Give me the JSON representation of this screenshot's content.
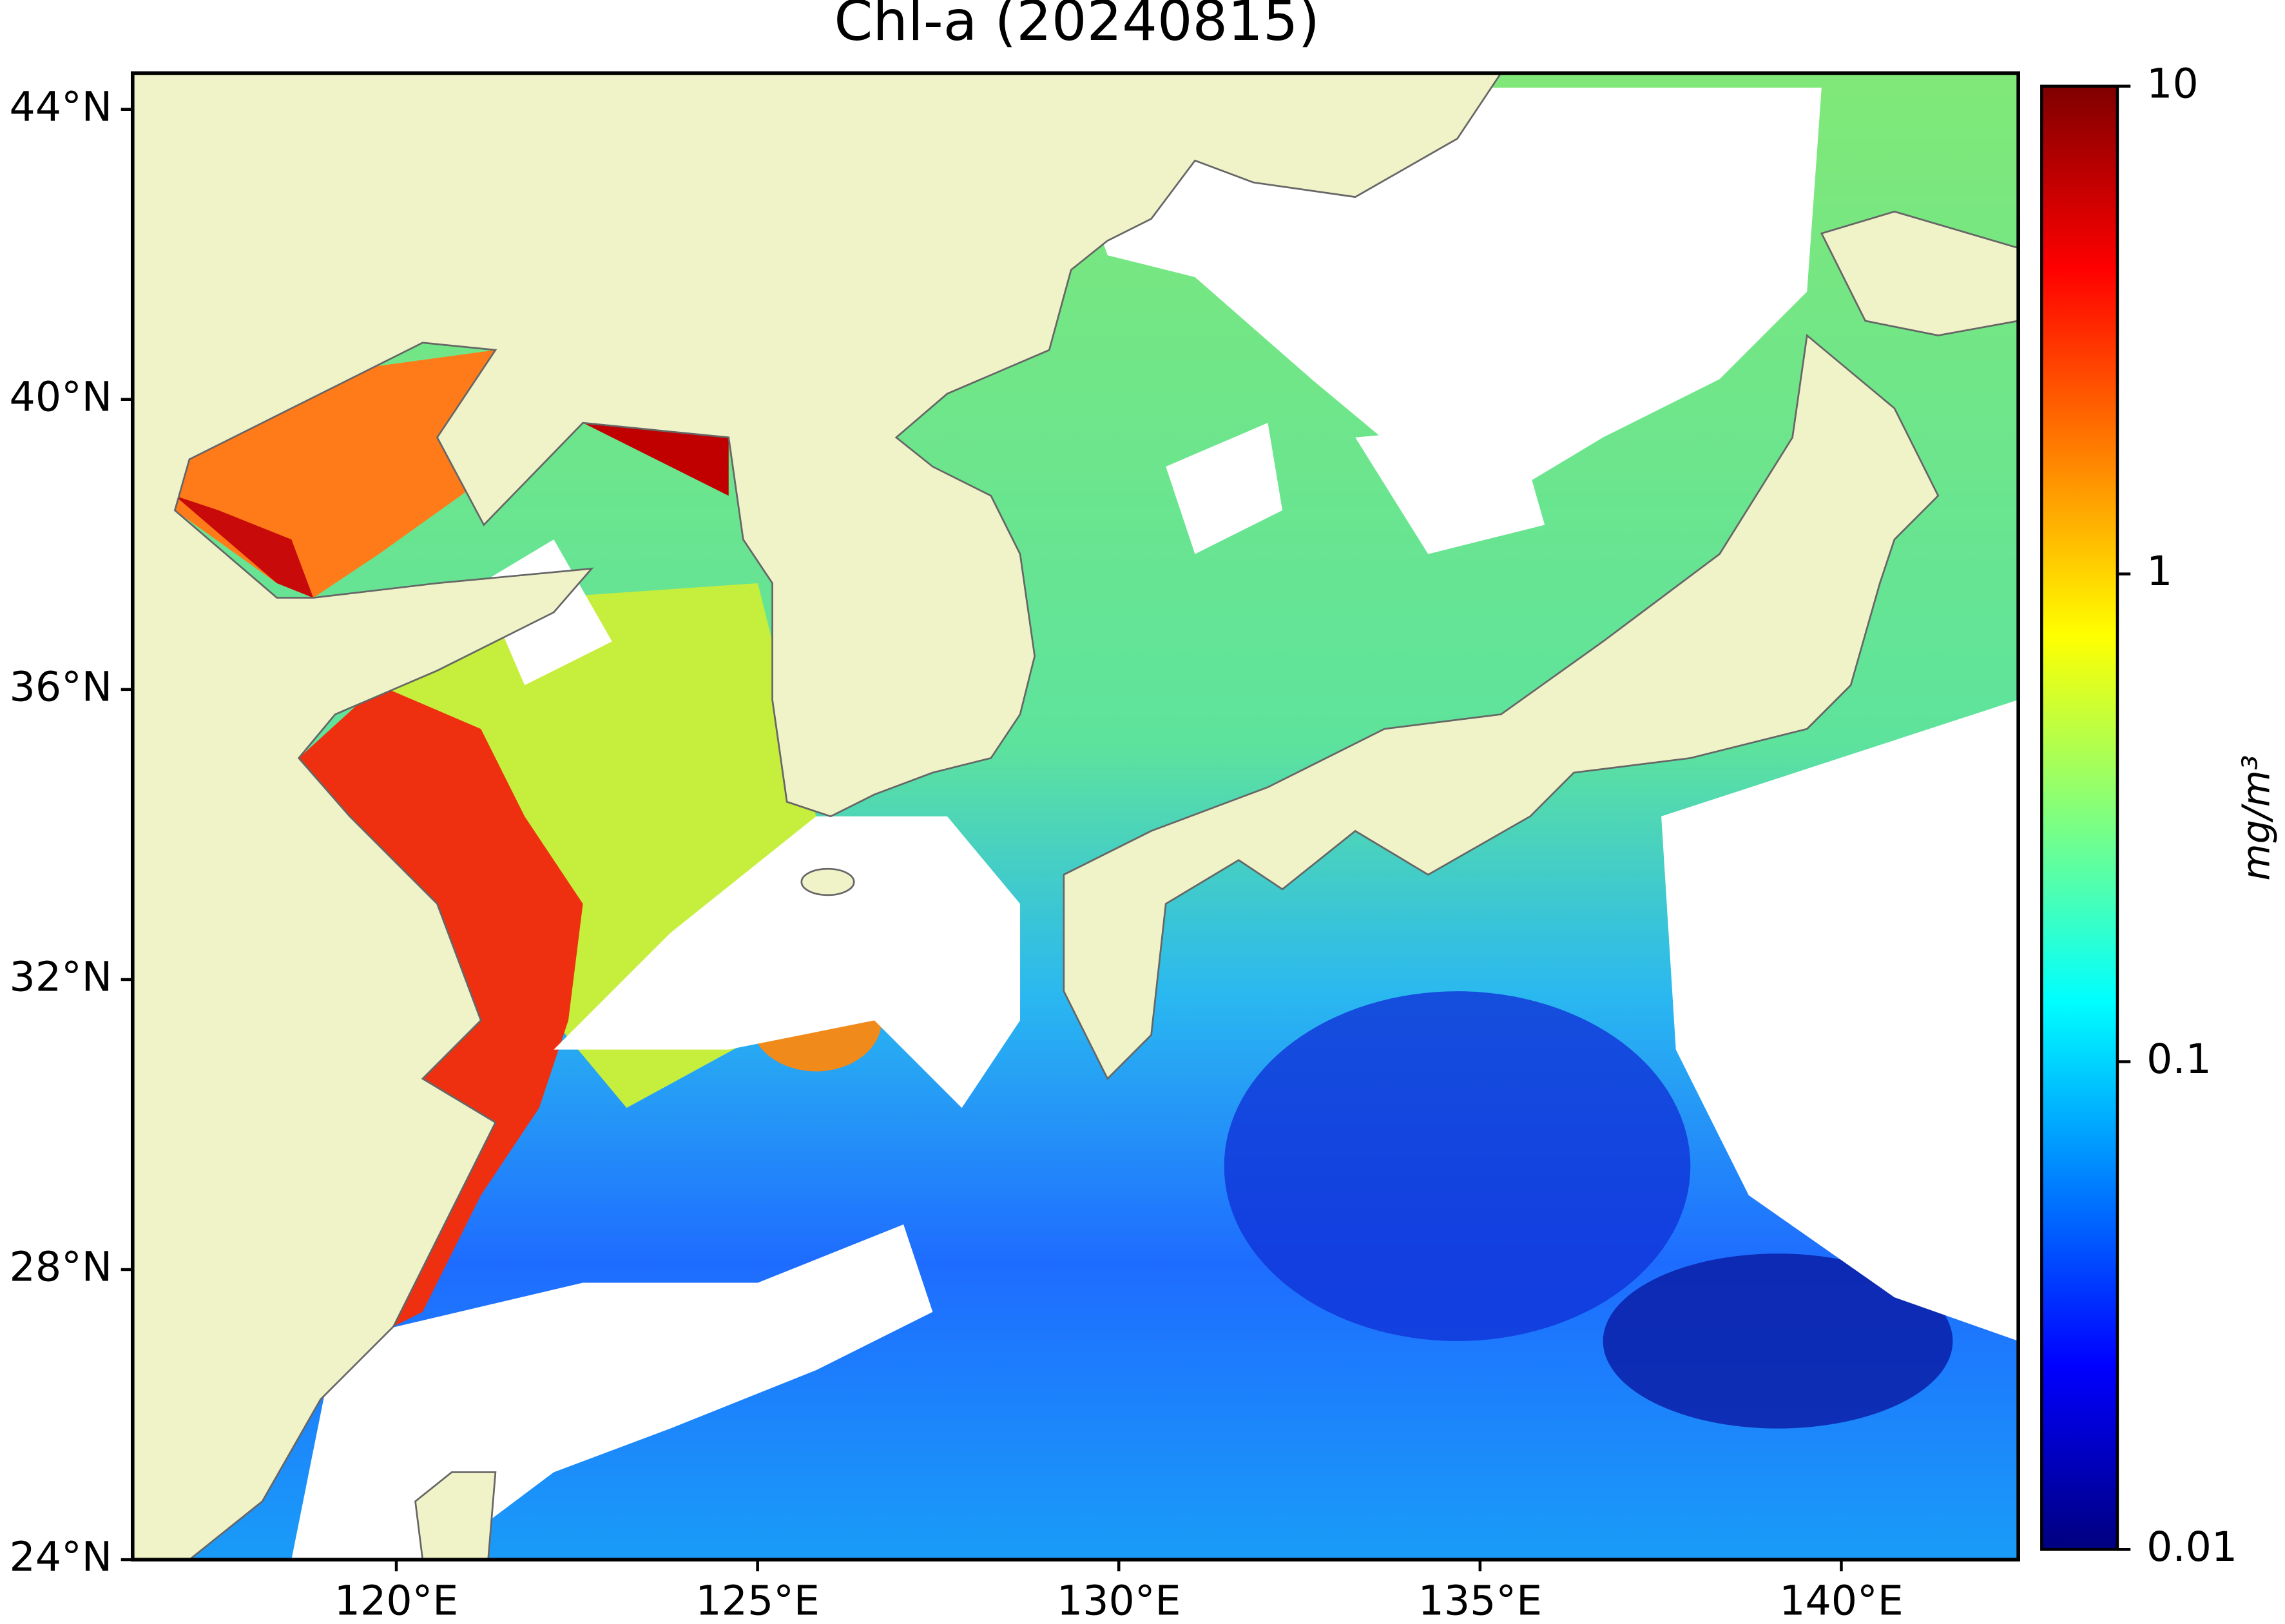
{
  "chart_data": {
    "type": "map",
    "title": "Chl-a (20240815)",
    "xlim": [
      116.35,
      142.45
    ],
    "ylim": [
      24,
      44.5
    ],
    "xticks": [
      {
        "value": 120,
        "label": "120°E"
      },
      {
        "value": 125,
        "label": "125°E"
      },
      {
        "value": 130,
        "label": "130°E"
      },
      {
        "value": 135,
        "label": "135°E"
      },
      {
        "value": 140,
        "label": "140°E"
      }
    ],
    "yticks": [
      {
        "value": 24,
        "label": "24°N"
      },
      {
        "value": 28,
        "label": "28°N"
      },
      {
        "value": 32,
        "label": "32°N"
      },
      {
        "value": 36,
        "label": "36°N"
      },
      {
        "value": 40,
        "label": "40°N"
      },
      {
        "value": 44,
        "label": "44°N"
      }
    ],
    "colorbar": {
      "label": "mg/m³",
      "scale": "log",
      "colormap": "jet",
      "range": [
        0.01,
        10
      ],
      "ticks": [
        0.01,
        0.1,
        1,
        10
      ]
    }
  }
}
